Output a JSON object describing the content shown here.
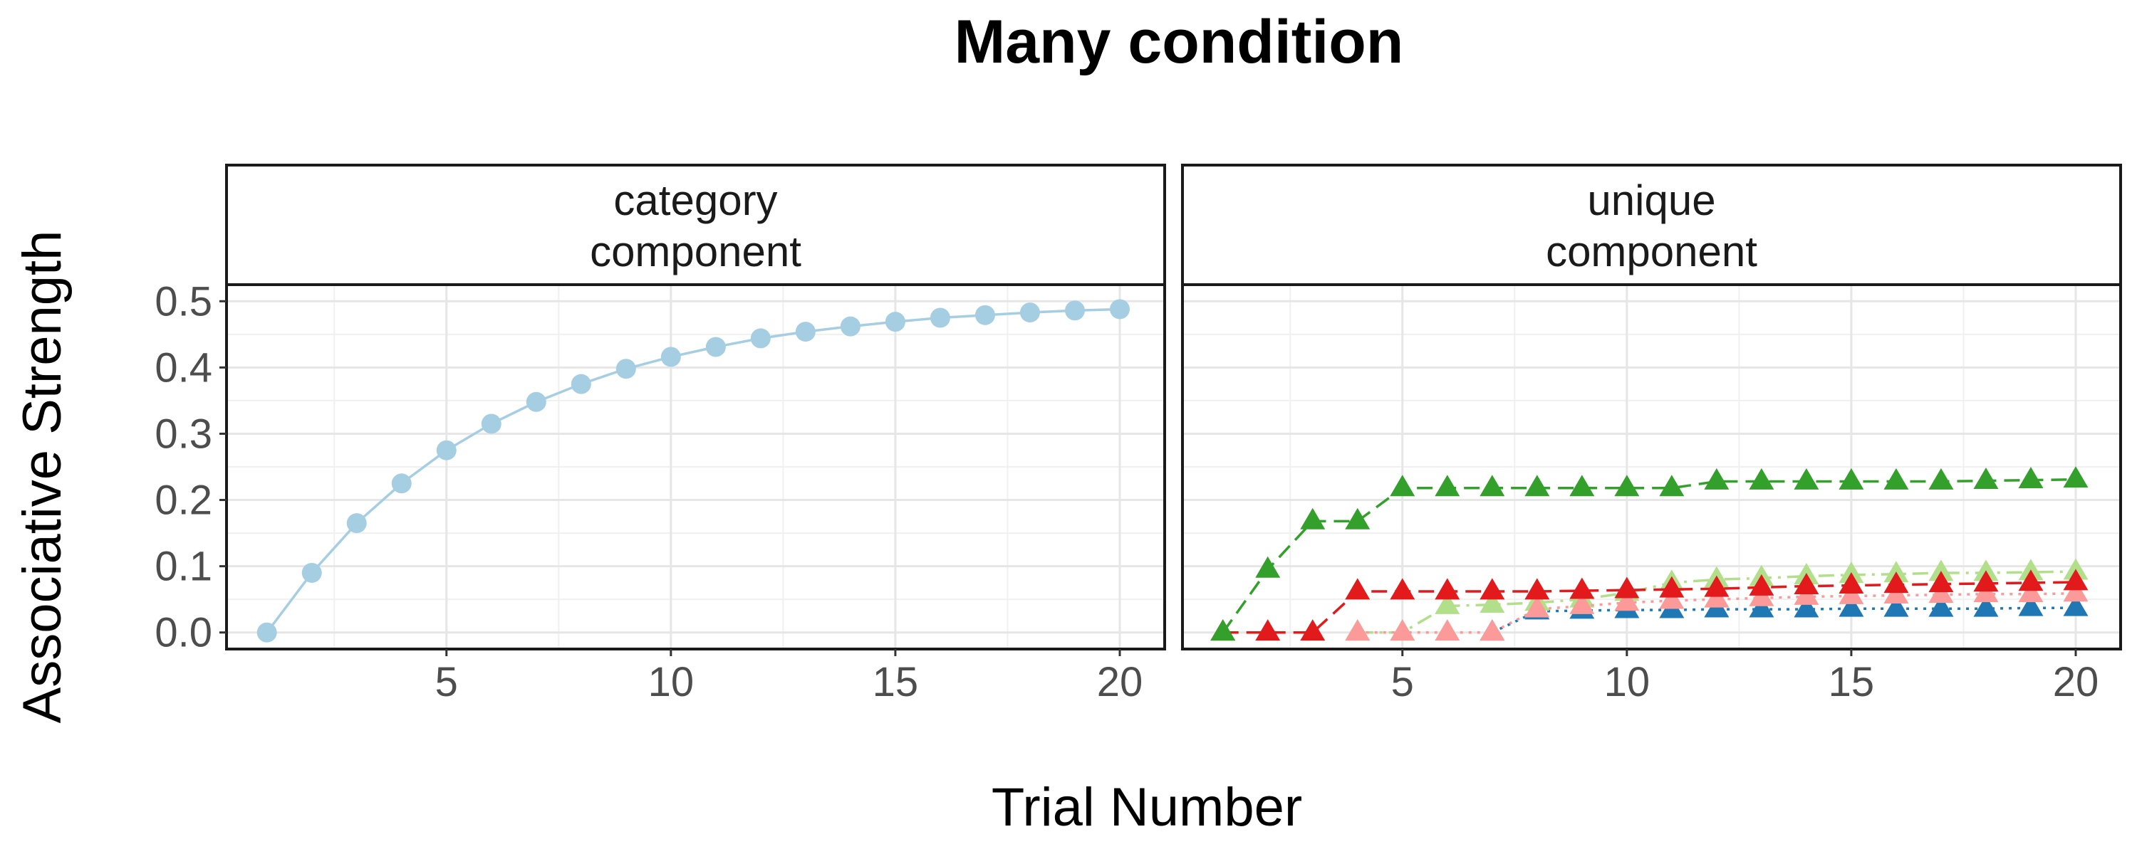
{
  "chart_data": {
    "type": "line",
    "title": "Many condition",
    "xlabel": "Trial Number",
    "ylabel": "Associative Strength",
    "xlim": [
      0.1,
      21.0
    ],
    "ylim": [
      -0.025,
      0.525
    ],
    "x_ticks": [
      5,
      10,
      15,
      20
    ],
    "x_tick_labels": [
      "5",
      "10",
      "15",
      "20"
    ],
    "y_ticks": [
      0.0,
      0.1,
      0.2,
      0.3,
      0.4,
      0.5
    ],
    "y_tick_labels": [
      "0.0",
      "0.1",
      "0.2",
      "0.3",
      "0.4",
      "0.5"
    ],
    "grid": true,
    "facets": [
      {
        "strip": [
          "category",
          "component"
        ],
        "series": [
          {
            "color": "#a6cee3",
            "marker": "circle",
            "linestyle": "solid",
            "x": [
              1,
              2,
              3,
              4,
              5,
              6,
              7,
              8,
              9,
              10,
              11,
              12,
              13,
              14,
              15,
              16,
              17,
              18,
              19,
              20
            ],
            "y": [
              0.0,
              0.09,
              0.165,
              0.225,
              0.275,
              0.315,
              0.348,
              0.375,
              0.398,
              0.416,
              0.431,
              0.444,
              0.454,
              0.462,
              0.469,
              0.475,
              0.479,
              0.483,
              0.486,
              0.488
            ]
          }
        ]
      },
      {
        "strip": [
          "unique",
          "component"
        ],
        "series": [
          {
            "color": "#1f78b4",
            "marker": "triangle",
            "linestyle": "dotted",
            "x": [
              7,
              8,
              9,
              10,
              11,
              12,
              13,
              14,
              15,
              16,
              17,
              18,
              19,
              20
            ],
            "y": [
              0.0,
              0.032,
              0.033,
              0.034,
              0.034,
              0.035,
              0.035,
              0.035,
              0.036,
              0.036,
              0.036,
              0.036,
              0.037,
              0.037
            ]
          },
          {
            "color": "#b2df8a",
            "marker": "triangle",
            "linestyle": "dashdot",
            "x": [
              4,
              5,
              6,
              7,
              8,
              9,
              10,
              11,
              12,
              13,
              14,
              15,
              16,
              17,
              18,
              19,
              20
            ],
            "y": [
              0.0,
              0.0,
              0.04,
              0.042,
              0.045,
              0.05,
              0.06,
              0.075,
              0.08,
              0.082,
              0.085,
              0.087,
              0.088,
              0.09,
              0.09,
              0.091,
              0.092
            ]
          },
          {
            "color": "#fb9a99",
            "marker": "triangle",
            "linestyle": "dotted",
            "x": [
              4,
              5,
              6,
              7,
              8,
              9,
              10,
              11,
              12,
              13,
              14,
              15,
              16,
              17,
              18,
              19,
              20
            ],
            "y": [
              0.0,
              0.0,
              0.0,
              0.0,
              0.035,
              0.04,
              0.045,
              0.048,
              0.05,
              0.052,
              0.054,
              0.055,
              0.056,
              0.057,
              0.058,
              0.058,
              0.059
            ]
          },
          {
            "color": "#e31a1c",
            "marker": "triangle",
            "linestyle": "dashed",
            "x": [
              1,
              2,
              3,
              4,
              5,
              6,
              7,
              8,
              9,
              10,
              11,
              12,
              13,
              14,
              15,
              16,
              17,
              18,
              19,
              20
            ],
            "y": [
              0.0,
              0.0,
              0.0,
              0.062,
              0.062,
              0.062,
              0.062,
              0.062,
              0.063,
              0.064,
              0.065,
              0.066,
              0.068,
              0.07,
              0.071,
              0.072,
              0.073,
              0.074,
              0.075,
              0.076
            ]
          },
          {
            "color": "#33a02c",
            "marker": "triangle",
            "linestyle": "dashed",
            "x": [
              1,
              2,
              3,
              4,
              5,
              6,
              7,
              8,
              9,
              10,
              11,
              12,
              13,
              14,
              15,
              16,
              17,
              18,
              19,
              20
            ],
            "y": [
              0.0,
              0.095,
              0.168,
              0.168,
              0.218,
              0.218,
              0.218,
              0.218,
              0.218,
              0.218,
              0.218,
              0.228,
              0.228,
              0.228,
              0.228,
              0.228,
              0.228,
              0.229,
              0.23,
              0.231
            ]
          }
        ]
      }
    ]
  }
}
